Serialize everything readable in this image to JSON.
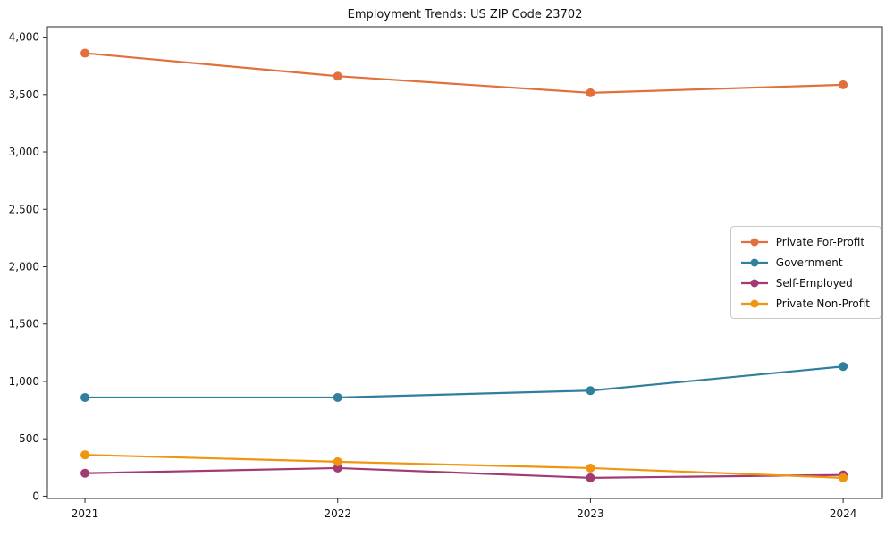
{
  "chart_data": {
    "type": "line",
    "title": "Employment Trends: US ZIP Code 23702",
    "x": [
      "2021",
      "2022",
      "2023",
      "2024"
    ],
    "series": [
      {
        "name": "Private For-Profit",
        "color": "#E2703C",
        "values": [
          3860,
          3660,
          3515,
          3585
        ]
      },
      {
        "name": "Government",
        "color": "#2F7F9D",
        "values": [
          860,
          860,
          920,
          1130
        ]
      },
      {
        "name": "Self-Employed",
        "color": "#A23B72",
        "values": [
          200,
          245,
          160,
          185
        ]
      },
      {
        "name": "Private Non-Profit",
        "color": "#F0950F",
        "values": [
          360,
          300,
          245,
          160
        ]
      }
    ],
    "ylim": [
      -20,
      4090
    ],
    "yticks": [
      0,
      500,
      1000,
      1500,
      2000,
      2500,
      3000,
      3500,
      4000
    ],
    "ytick_labels": [
      "0",
      "500",
      "1,000",
      "1,500",
      "2,000",
      "2,500",
      "3,000",
      "3,500",
      "4,000"
    ],
    "xlabel": "",
    "ylabel": "",
    "grid": false,
    "legend_position": "center-right",
    "axis_color": "#2b2b2b",
    "marker_radius": 5,
    "line_width": 2.2
  }
}
